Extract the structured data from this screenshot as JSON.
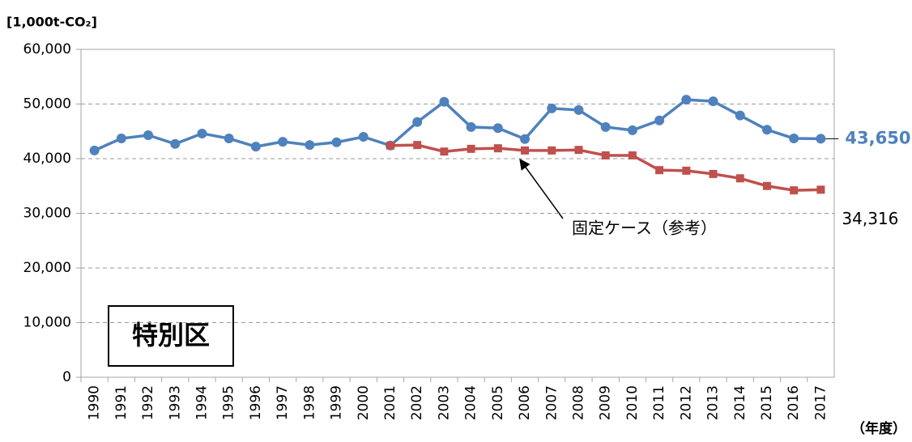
{
  "chart_data": {
    "type": "line",
    "y_label": "[1,000t-CO₂]",
    "x_label": "（年度）",
    "box_label": "特別区",
    "categories": [
      "1990",
      "1991",
      "1992",
      "1993",
      "1994",
      "1995",
      "1996",
      "1997",
      "1998",
      "1999",
      "2000",
      "2001",
      "2002",
      "2003",
      "2004",
      "2005",
      "2006",
      "2007",
      "2008",
      "2009",
      "2010",
      "2011",
      "2012",
      "2013",
      "2014",
      "2015",
      "2016",
      "2017"
    ],
    "series": [
      {
        "color": "#4f81bd",
        "marker": "circle",
        "values": [
          41500,
          43700,
          44300,
          42700,
          44600,
          43700,
          42200,
          43100,
          42500,
          43000,
          44000,
          42400,
          46700,
          50400,
          45800,
          45600,
          43600,
          49200,
          48900,
          45800,
          45200,
          47000,
          50800,
          50500,
          47900,
          45300,
          43700,
          43650
        ],
        "value_labels": [
          null,
          null,
          null,
          null,
          null,
          null,
          null,
          null,
          null,
          null,
          null,
          null,
          null,
          null,
          null,
          null,
          null,
          null,
          null,
          null,
          null,
          null,
          null,
          null,
          null,
          null,
          null,
          "43,650"
        ]
      },
      {
        "name": "固定ケース（参考）",
        "color": "#c0504d",
        "marker": "square",
        "values": [
          null,
          null,
          null,
          null,
          null,
          null,
          null,
          null,
          null,
          null,
          null,
          42400,
          42500,
          41300,
          41800,
          41900,
          41500,
          41500,
          41600,
          40600,
          40600,
          37900,
          37800,
          37200,
          36400,
          35000,
          34200,
          34316
        ],
        "value_labels": [
          null,
          null,
          null,
          null,
          null,
          null,
          null,
          null,
          null,
          null,
          null,
          null,
          null,
          null,
          null,
          null,
          null,
          null,
          null,
          null,
          null,
          null,
          null,
          null,
          null,
          null,
          null,
          "34,316"
        ]
      }
    ],
    "ylim": [
      0,
      60000
    ],
    "yticks": [
      0,
      {
        "value": 10000,
        "label": "10,000"
      },
      {
        "value": 20000,
        "label": "20,000"
      },
      {
        "value": 30000,
        "label": "30,000"
      },
      {
        "value": 40000,
        "label": "40,000"
      },
      {
        "value": 50000,
        "label": "50,000"
      },
      {
        "value": 60000,
        "label": "60,000"
      }
    ],
    "grid": true
  }
}
